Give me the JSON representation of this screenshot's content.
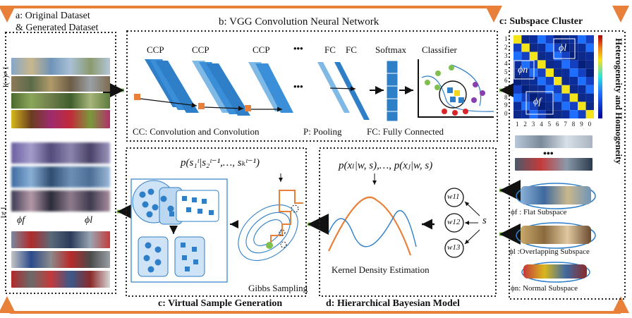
{
  "panels": {
    "a": {
      "title_line1": "a:  Original Dataset",
      "title_line2": "& Generated Dataset",
      "side_top": "I(+)≠ I",
      "side_bottom": "I≠ I",
      "phi_f": "ϕf",
      "phi_l": "ϕl"
    },
    "b": {
      "title": "b: VGG Convolution Neural Network",
      "ccp1": "CCP",
      "ccp2": "CCP",
      "ccp3": "CCP",
      "dots": "•••",
      "fc1": "FC",
      "fc2": "FC",
      "softmax": "Softmax",
      "classifier": "Classifier",
      "legend_cc": "CC: Convolution and Convolution",
      "legend_p": "P: Pooling",
      "legend_fc": "FC: Fully Connected"
    },
    "c_left": {
      "title": "c: Virtual Sample Generation",
      "formula": "p(s₁ᵗ|s₂ᵗ⁻¹,…, sₖᵗ⁻¹)",
      "gibbs": "Gibbs Sampling"
    },
    "d": {
      "title": "d: Hierarchical Bayesian Model",
      "formula": "p(xₗ|w, s),…, p(xⱼ|w, s)",
      "kde": "Kernel Density Estimation",
      "w11": "w11",
      "w12": "w12",
      "w13": "w13",
      "s": "s"
    },
    "c_right": {
      "title": "c: Subspace Cluster",
      "vertical": "Heterogeneity and Homogeneity",
      "phi_l": "ϕl",
      "phi_n": "ϕn",
      "phi_f": "ϕf",
      "flat": "ϕf : Flat Subspace",
      "overlapping": "ϕl :Overlapping Subspace",
      "normal": "ϕn:  Normal  Subspace",
      "row_ticks": [
        "1",
        "2",
        "3",
        "4",
        "5",
        "6",
        "7",
        "8",
        "9",
        "0"
      ],
      "col_ticks": [
        "1",
        "2",
        "3",
        "4",
        "5",
        "6",
        "7",
        "8",
        "9",
        "0"
      ]
    }
  },
  "colors": {
    "orange": "#e8803a",
    "green": "#7fbf4d",
    "blue": "#2f7fc8",
    "lightblue": "#7fb9e6",
    "dark": "#222222"
  }
}
